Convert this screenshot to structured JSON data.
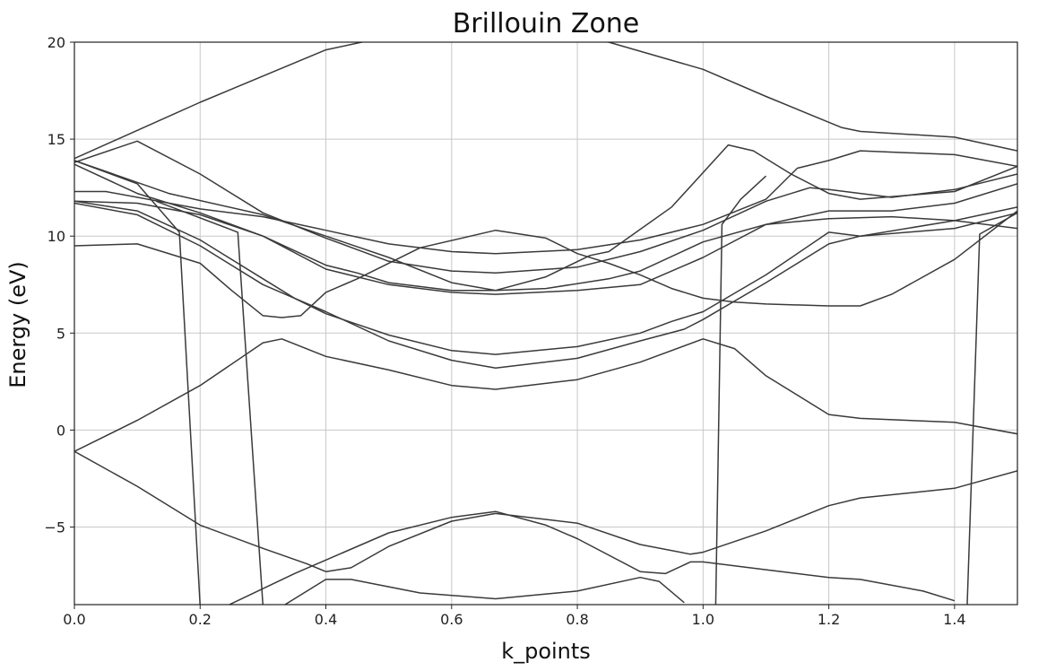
{
  "chart_data": {
    "type": "line",
    "title": "Brillouin Zone",
    "xlabel": "k_points",
    "ylabel": "Energy (eV)",
    "xlim": [
      0,
      1.5
    ],
    "ylim": [
      -9,
      20
    ],
    "xticks": [
      0.0,
      0.2,
      0.4,
      0.6,
      0.8,
      1.0,
      1.2,
      1.4
    ],
    "xtick_labels": [
      "0.0",
      "0.2",
      "0.4",
      "0.6",
      "0.8",
      "1.0",
      "1.2",
      "1.4"
    ],
    "yticks": [
      -5,
      0,
      5,
      10,
      15,
      20
    ],
    "ytick_labels": [
      "−5",
      "0",
      "5",
      "10",
      "15",
      "20"
    ],
    "grid": true,
    "line_color": "#3a3a3a",
    "series": [
      {
        "points": [
          [
            0,
            14
          ],
          [
            0.2,
            16.9
          ],
          [
            0.4,
            19.6
          ],
          [
            0.5,
            20.3
          ],
          [
            0.67,
            20.7
          ],
          [
            0.85,
            20
          ],
          [
            1.0,
            18.6
          ],
          [
            1.1,
            17.2
          ],
          [
            1.22,
            15.6
          ],
          [
            1.25,
            15.4
          ],
          [
            1.4,
            15.1
          ],
          [
            1.5,
            14.4
          ]
        ]
      },
      {
        "points": [
          [
            0,
            13.8
          ],
          [
            0.1,
            14.9
          ],
          [
            0.2,
            13.2
          ],
          [
            0.3,
            11.2
          ],
          [
            0.4,
            9.9
          ],
          [
            0.5,
            8.7
          ],
          [
            0.6,
            8.2
          ],
          [
            0.67,
            8.1
          ],
          [
            0.8,
            8.4
          ],
          [
            0.9,
            9.2
          ],
          [
            1.0,
            10.3
          ],
          [
            1.1,
            11.8
          ],
          [
            1.17,
            12.5
          ],
          [
            1.2,
            12.4
          ],
          [
            1.3,
            12
          ],
          [
            1.4,
            12.4
          ],
          [
            1.5,
            13.2
          ]
        ]
      },
      {
        "points": [
          [
            0,
            13.9
          ],
          [
            0.15,
            12.2
          ],
          [
            0.3,
            11.1
          ],
          [
            0.4,
            10
          ],
          [
            0.5,
            8.9
          ],
          [
            0.6,
            7.6
          ],
          [
            0.67,
            7.2
          ],
          [
            0.75,
            7.9
          ],
          [
            0.82,
            9
          ],
          [
            0.85,
            9.2
          ],
          [
            0.95,
            11.5
          ],
          [
            1.04,
            14.7
          ],
          [
            1.08,
            14.4
          ],
          [
            1.14,
            13.2
          ],
          [
            1.2,
            12.2
          ],
          [
            1.25,
            11.9
          ],
          [
            1.4,
            12.3
          ],
          [
            1.5,
            13.6
          ]
        ]
      },
      {
        "points": [
          [
            0,
            12.3
          ],
          [
            0.05,
            12.3
          ],
          [
            0.2,
            11.4
          ],
          [
            0.3,
            11
          ],
          [
            0.4,
            10.3
          ],
          [
            0.5,
            9.6
          ],
          [
            0.6,
            9.2
          ],
          [
            0.67,
            9.1
          ],
          [
            0.8,
            9.3
          ],
          [
            0.9,
            9.8
          ],
          [
            1.0,
            10.6
          ],
          [
            1.1,
            11.9
          ],
          [
            1.15,
            13.5
          ],
          [
            1.2,
            13.9
          ],
          [
            1.25,
            14.4
          ],
          [
            1.4,
            14.2
          ],
          [
            1.5,
            13.6
          ]
        ]
      },
      {
        "points": [
          [
            0,
            13.7
          ],
          [
            0.1,
            12.2
          ],
          [
            0.2,
            11.2
          ],
          [
            0.3,
            10
          ],
          [
            0.4,
            8.3
          ],
          [
            0.5,
            7.5
          ],
          [
            0.6,
            7.1
          ],
          [
            0.67,
            7
          ],
          [
            0.8,
            7.2
          ],
          [
            0.9,
            7.5
          ],
          [
            1.0,
            8.9
          ],
          [
            1.1,
            10.6
          ],
          [
            1.2,
            11.3
          ],
          [
            1.3,
            11.3
          ],
          [
            1.4,
            11.7
          ],
          [
            1.5,
            12.7
          ]
        ]
      },
      {
        "points": [
          [
            0,
            11.8
          ],
          [
            0.1,
            11.7
          ],
          [
            0.2,
            11.1
          ],
          [
            0.3,
            10
          ],
          [
            0.4,
            8.5
          ],
          [
            0.45,
            8.1
          ],
          [
            0.5,
            7.6
          ],
          [
            0.6,
            7.2
          ],
          [
            0.67,
            7.2
          ],
          [
            0.75,
            7.3
          ],
          [
            0.85,
            7.8
          ],
          [
            0.9,
            8.2
          ],
          [
            1.0,
            9.7
          ],
          [
            1.1,
            10.6
          ],
          [
            1.2,
            10.9
          ],
          [
            1.3,
            11
          ],
          [
            1.4,
            10.8
          ],
          [
            1.5,
            10.4
          ]
        ]
      },
      {
        "points": [
          [
            0,
            11.8
          ],
          [
            0.1,
            11.3
          ],
          [
            0.2,
            9.8
          ],
          [
            0.3,
            7.8
          ],
          [
            0.35,
            6.8
          ],
          [
            0.4,
            6
          ],
          [
            0.5,
            4.9
          ],
          [
            0.6,
            4.1
          ],
          [
            0.67,
            3.9
          ],
          [
            0.8,
            4.3
          ],
          [
            0.9,
            5
          ],
          [
            0.95,
            5.6
          ],
          [
            1.0,
            6.1
          ],
          [
            1.1,
            8
          ],
          [
            1.2,
            10.2
          ],
          [
            1.25,
            10
          ],
          [
            1.4,
            10.4
          ],
          [
            1.5,
            11.2
          ]
        ]
      },
      {
        "points": [
          [
            0,
            11.7
          ],
          [
            0.1,
            11.1
          ],
          [
            0.2,
            9.5
          ],
          [
            0.3,
            7.5
          ],
          [
            0.35,
            6.8
          ],
          [
            0.4,
            6.1
          ],
          [
            0.5,
            4.6
          ],
          [
            0.6,
            3.6
          ],
          [
            0.67,
            3.2
          ],
          [
            0.8,
            3.7
          ],
          [
            0.9,
            4.6
          ],
          [
            0.97,
            5.2
          ],
          [
            1.0,
            5.7
          ],
          [
            1.1,
            7.6
          ],
          [
            1.2,
            9.6
          ],
          [
            1.25,
            10
          ],
          [
            1.4,
            10.8
          ],
          [
            1.5,
            11.5
          ]
        ]
      },
      {
        "points": [
          [
            0,
            9.5
          ],
          [
            0.1,
            9.6
          ],
          [
            0.2,
            8.6
          ],
          [
            0.25,
            7.2
          ],
          [
            0.3,
            5.9
          ],
          [
            0.33,
            5.8
          ],
          [
            0.36,
            5.9
          ],
          [
            0.4,
            7.1
          ],
          [
            0.45,
            7.8
          ],
          [
            0.55,
            9.4
          ],
          [
            0.67,
            10.3
          ],
          [
            0.75,
            9.9
          ],
          [
            0.8,
            9.1
          ],
          [
            0.85,
            8.6
          ],
          [
            0.9,
            8
          ],
          [
            0.95,
            7.3
          ],
          [
            1.0,
            6.8
          ],
          [
            1.05,
            6.6
          ],
          [
            1.1,
            6.5
          ],
          [
            1.2,
            6.4
          ],
          [
            1.25,
            6.4
          ],
          [
            1.3,
            7
          ],
          [
            1.4,
            8.8
          ],
          [
            1.5,
            11.3
          ]
        ]
      },
      {
        "points": [
          [
            0,
            -1.1
          ],
          [
            0.1,
            0.5
          ],
          [
            0.2,
            2.3
          ],
          [
            0.3,
            4.5
          ],
          [
            0.33,
            4.7
          ],
          [
            0.4,
            3.8
          ],
          [
            0.5,
            3.1
          ],
          [
            0.6,
            2.3
          ],
          [
            0.67,
            2.1
          ],
          [
            0.8,
            2.6
          ],
          [
            0.9,
            3.5
          ],
          [
            1.0,
            4.7
          ],
          [
            1.05,
            4.2
          ],
          [
            1.1,
            2.8
          ],
          [
            1.2,
            0.8
          ],
          [
            1.25,
            0.6
          ],
          [
            1.4,
            0.4
          ],
          [
            1.5,
            -0.2
          ]
        ]
      },
      {
        "points": [
          [
            0,
            -1.1
          ],
          [
            0.1,
            -2.9
          ],
          [
            0.2,
            -4.9
          ],
          [
            0.3,
            -6.1
          ],
          [
            0.37,
            -6.9
          ],
          [
            0.4,
            -7.3
          ],
          [
            0.44,
            -7.1
          ],
          [
            0.5,
            -6
          ],
          [
            0.6,
            -4.7
          ],
          [
            0.67,
            -4.3
          ],
          [
            0.8,
            -4.8
          ],
          [
            0.9,
            -5.9
          ],
          [
            0.98,
            -6.4
          ],
          [
            1.0,
            -6.3
          ],
          [
            1.1,
            -5.2
          ],
          [
            1.2,
            -3.9
          ],
          [
            1.25,
            -3.5
          ],
          [
            1.4,
            -3
          ],
          [
            1.5,
            -2.1
          ]
        ]
      },
      {
        "points": [
          [
            0.24,
            -9.1
          ],
          [
            0.35,
            -7.4
          ],
          [
            0.4,
            -6.7
          ],
          [
            0.5,
            -5.3
          ],
          [
            0.6,
            -4.5
          ],
          [
            0.67,
            -4.2
          ],
          [
            0.75,
            -4.9
          ],
          [
            0.8,
            -5.6
          ],
          [
            0.9,
            -7.3
          ],
          [
            0.94,
            -7.4
          ],
          [
            0.98,
            -6.8
          ],
          [
            1.0,
            -6.8
          ],
          [
            1.1,
            -7.2
          ],
          [
            1.2,
            -7.6
          ],
          [
            1.25,
            -7.7
          ],
          [
            1.35,
            -8.3
          ],
          [
            1.4,
            -8.8
          ]
        ]
      },
      {
        "points": [
          [
            0.33,
            -9.1
          ],
          [
            0.4,
            -7.7
          ],
          [
            0.44,
            -7.7
          ],
          [
            0.55,
            -8.4
          ],
          [
            0.67,
            -8.7
          ],
          [
            0.8,
            -8.3
          ],
          [
            0.9,
            -7.6
          ],
          [
            0.93,
            -7.8
          ],
          [
            0.97,
            -8.9
          ]
        ]
      },
      {
        "points": [
          [
            0,
            13.9
          ],
          [
            0.1,
            12.7
          ],
          [
            0.167,
            10.2
          ],
          [
            0.2,
            -9.1
          ]
        ]
      },
      {
        "points": [
          [
            0.13,
            11.8
          ],
          [
            0.26,
            10.2
          ],
          [
            0.3,
            -9.1
          ]
        ]
      },
      {
        "points": [
          [
            1.02,
            -9.1
          ],
          [
            1.03,
            10.6
          ],
          [
            1.06,
            11.9
          ],
          [
            1.1,
            13.1
          ]
        ]
      },
      {
        "points": [
          [
            1.42,
            -9.1
          ],
          [
            1.44,
            10.1
          ],
          [
            1.5,
            11.2
          ]
        ]
      }
    ]
  }
}
